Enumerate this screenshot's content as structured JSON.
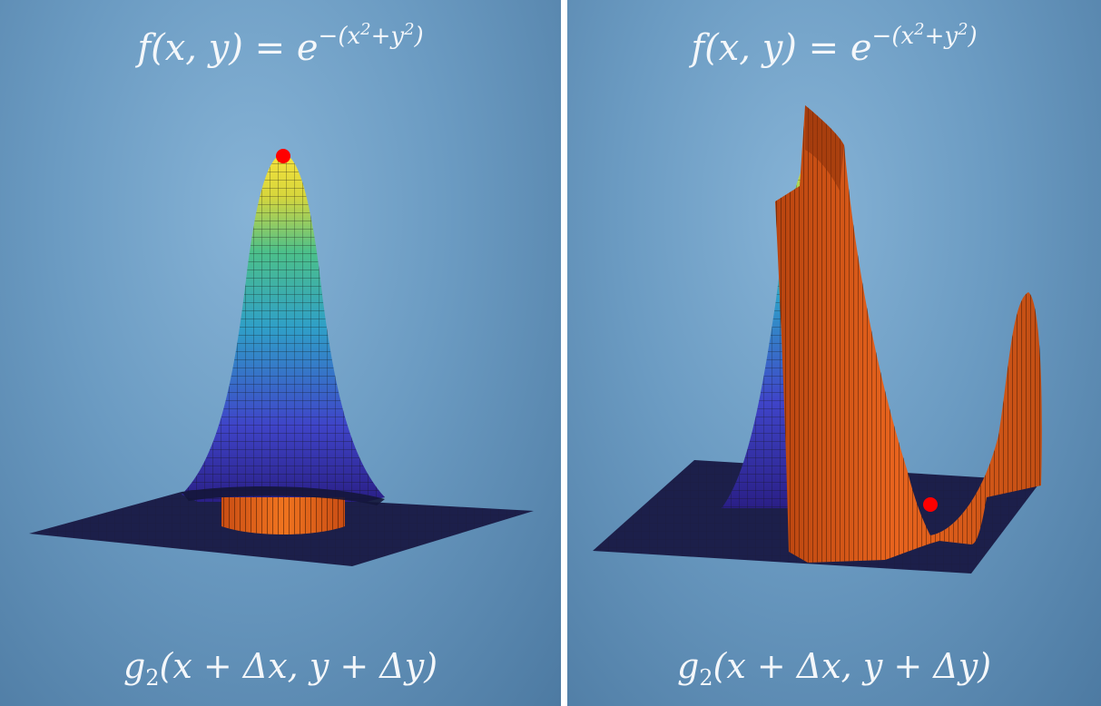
{
  "panels": [
    {
      "title": {
        "lhs": "f(x, y) = e",
        "exp_open": "−(x",
        "exp_sq1": "2",
        "exp_mid": "+y",
        "exp_sq2": "2",
        "exp_close": ")"
      },
      "caption": {
        "fn": "g",
        "sub": "2",
        "args": "(x + Δx, y + Δy)"
      }
    },
    {
      "title": {
        "lhs": "f(x, y) = e",
        "exp_open": "−(x",
        "exp_sq1": "2",
        "exp_mid": "+y",
        "exp_sq2": "2",
        "exp_close": ")"
      },
      "caption": {
        "fn": "g",
        "sub": "2",
        "args": "(x + Δx, y + Δy)"
      }
    }
  ],
  "colors": {
    "surface_low": "#3a2f9a",
    "surface_mid": "#2f9fc8",
    "surface_high": "#f5e23c",
    "approximation_surface": "#e8641e",
    "base_plane": "#1c1f4a",
    "marker": "#ff0000",
    "text": "#f4f7fa"
  }
}
